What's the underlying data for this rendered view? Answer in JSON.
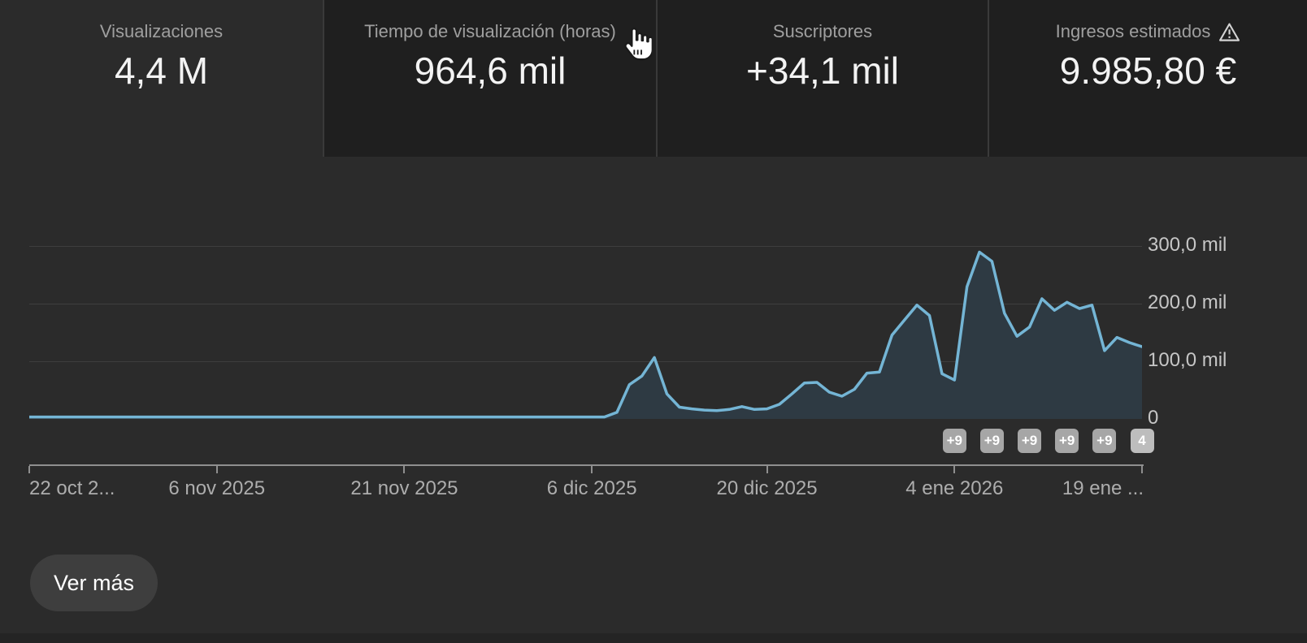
{
  "tabs": [
    {
      "label": "Visualizaciones",
      "value": "4,4 M",
      "selected": true
    },
    {
      "label": "Tiempo de visualización (horas)",
      "value": "964,6 mil",
      "selected": false,
      "hovered": true
    },
    {
      "label": "Suscriptores",
      "value": "+34,1 mil",
      "selected": false
    },
    {
      "label": "Ingresos estimados",
      "value": "9.985,80 €",
      "selected": false,
      "has_warning_icon": true
    }
  ],
  "chart_data": {
    "type": "area",
    "title": "",
    "xlabel": "",
    "ylabel": "",
    "legend": "none",
    "grid": "horizontal",
    "x_unit": "day",
    "x_start_label": "22 oct 2025",
    "x_tick_days": [
      0,
      15,
      30,
      45,
      59,
      74,
      89
    ],
    "x_tick_labels": [
      "22 oct 2...",
      "6 nov 2025",
      "21 nov 2025",
      "6 dic 2025",
      "20 dic 2025",
      "4 ene 2026",
      "19 ene ..."
    ],
    "y_tick_values_thousands": [
      300,
      200,
      100,
      0
    ],
    "y_tick_labels": [
      "300,0 mil",
      "200,0 mil",
      "100,0 mil",
      "0"
    ],
    "ylim_thousands": [
      0,
      346
    ],
    "series": [
      {
        "name": "Visualizaciones",
        "values_thousands": [
          2,
          2,
          2,
          2,
          2,
          2,
          2,
          2,
          2,
          2,
          2,
          2,
          2,
          2,
          2,
          2,
          2,
          2,
          2,
          2,
          2,
          2,
          2,
          2,
          2,
          2,
          2,
          2,
          2,
          2,
          2,
          2,
          2,
          2,
          2,
          2,
          2,
          2,
          2,
          2,
          2,
          2,
          2,
          2,
          2,
          2,
          2,
          10,
          58,
          73,
          105,
          42,
          19,
          16,
          14,
          13,
          15,
          20,
          15,
          16,
          24,
          42,
          61,
          62,
          45,
          38,
          50,
          78,
          80,
          144,
          170,
          196,
          178,
          77,
          66,
          228,
          288,
          272,
          182,
          142,
          158,
          207,
          187,
          201,
          190,
          196,
          117,
          140,
          131,
          124
        ]
      }
    ],
    "video_markers": [
      {
        "label": "+9",
        "day": 74
      },
      {
        "label": "+9",
        "day": 77
      },
      {
        "label": "+9",
        "day": 80
      },
      {
        "label": "+9",
        "day": 83
      },
      {
        "label": "+9",
        "day": 86
      },
      {
        "label": "4",
        "day": 89
      }
    ]
  },
  "footer": {
    "see_more_label": "Ver más"
  },
  "colors": {
    "background": "#2b2b2b",
    "card_unselected": "#1f1f1f",
    "line": "#74b5d5",
    "area_fill": "#2e3a43",
    "gridline": "#3e3e3e",
    "axis": "#8f8f8f",
    "text_primary": "#f3f3f3",
    "text_secondary": "#9f9f9f",
    "badge_bg": "#a6a6a6",
    "badge_bg_last": "#bdbdbd",
    "button_bg": "#3e3e3e"
  }
}
